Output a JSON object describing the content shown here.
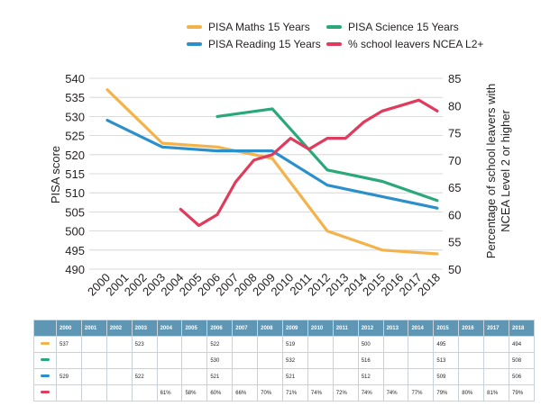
{
  "legend": [
    {
      "id": "maths",
      "label": "PISA Maths 15 Years",
      "color": "#f4b34a"
    },
    {
      "id": "science",
      "label": "PISA Science 15 Years",
      "color": "#2aa87a"
    },
    {
      "id": "reading",
      "label": "PISA Reading 15 Years",
      "color": "#2b8fcb"
    },
    {
      "id": "ncea",
      "label": "% school leavers NCEA L2+",
      "color": "#e03a5c"
    }
  ],
  "chart_data": {
    "type": "line",
    "x": [
      2000,
      2001,
      2002,
      2003,
      2004,
      2005,
      2006,
      2007,
      2008,
      2009,
      2010,
      2011,
      2012,
      2013,
      2014,
      2015,
      2016,
      2017,
      2018
    ],
    "x_labels": [
      "2000",
      "2001",
      "2002",
      "2003",
      "2004",
      "2005",
      "2006",
      "2007",
      "2008",
      "2009",
      "2010",
      "2011",
      "2012",
      "2013",
      "2014",
      "2015",
      "2016",
      "2017",
      "2018"
    ],
    "ylabel": "PISA score",
    "ylim": [
      490,
      540
    ],
    "y_ticks": [
      540,
      535,
      530,
      525,
      520,
      515,
      510,
      505,
      500,
      495,
      490
    ],
    "y2label_line1": "Percentage of school leavers with",
    "y2label_line2": "NCEA Level 2 or higher",
    "y2lim": [
      50,
      85
    ],
    "y2_ticks": [
      85,
      80,
      75,
      70,
      65,
      60,
      55,
      50
    ],
    "series": [
      {
        "id": "maths",
        "name": "PISA Maths 15 Years",
        "axis": "left",
        "color": "#f4b34a",
        "points": [
          [
            2000,
            537
          ],
          [
            2003,
            523
          ],
          [
            2006,
            522
          ],
          [
            2009,
            519
          ],
          [
            2012,
            500
          ],
          [
            2015,
            495
          ],
          [
            2018,
            494
          ]
        ]
      },
      {
        "id": "science",
        "name": "PISA Science 15 Years",
        "axis": "left",
        "color": "#2aa87a",
        "points": [
          [
            2006,
            530
          ],
          [
            2009,
            532
          ],
          [
            2012,
            516
          ],
          [
            2015,
            513
          ],
          [
            2018,
            508
          ]
        ]
      },
      {
        "id": "reading",
        "name": "PISA Reading 15 Years",
        "axis": "left",
        "color": "#2b8fcb",
        "points": [
          [
            2000,
            529
          ],
          [
            2003,
            522
          ],
          [
            2006,
            521
          ],
          [
            2009,
            521
          ],
          [
            2012,
            512
          ],
          [
            2015,
            509
          ],
          [
            2018,
            506
          ]
        ]
      },
      {
        "id": "ncea",
        "name": "% school leavers NCEA L2+",
        "axis": "right",
        "color": "#e03a5c",
        "points": [
          [
            2004,
            61
          ],
          [
            2005,
            58
          ],
          [
            2006,
            60
          ],
          [
            2007,
            66
          ],
          [
            2008,
            70
          ],
          [
            2009,
            71
          ],
          [
            2010,
            74
          ],
          [
            2011,
            72
          ],
          [
            2012,
            74
          ],
          [
            2013,
            74
          ],
          [
            2014,
            77
          ],
          [
            2015,
            79
          ],
          [
            2016,
            80
          ],
          [
            2017,
            81
          ],
          [
            2018,
            79
          ]
        ]
      }
    ]
  },
  "table": {
    "years": [
      "2000",
      "2001",
      "2002",
      "2003",
      "2004",
      "2005",
      "2006",
      "2007",
      "2008",
      "2009",
      "2010",
      "2011",
      "2012",
      "2013",
      "2014",
      "2015",
      "2016",
      "2017",
      "2018"
    ],
    "rows": [
      {
        "id": "maths",
        "color": "#f4b34a",
        "cells": [
          "537",
          "",
          "",
          "523",
          "",
          "",
          "522",
          "",
          "",
          "519",
          "",
          "",
          "500",
          "",
          "",
          "495",
          "",
          "",
          "494"
        ]
      },
      {
        "id": "science",
        "color": "#2aa87a",
        "cells": [
          "",
          "",
          "",
          "",
          "",
          "",
          "530",
          "",
          "",
          "532",
          "",
          "",
          "516",
          "",
          "",
          "513",
          "",
          "",
          "508"
        ]
      },
      {
        "id": "reading",
        "color": "#2b8fcb",
        "cells": [
          "529",
          "",
          "",
          "522",
          "",
          "",
          "521",
          "",
          "",
          "521",
          "",
          "",
          "512",
          "",
          "",
          "509",
          "",
          "",
          "506"
        ]
      },
      {
        "id": "ncea",
        "color": "#e03a5c",
        "cells": [
          "",
          "",
          "",
          "",
          "61%",
          "58%",
          "60%",
          "66%",
          "70%",
          "71%",
          "74%",
          "72%",
          "74%",
          "74%",
          "77%",
          "79%",
          "80%",
          "81%",
          "79%"
        ]
      }
    ]
  }
}
